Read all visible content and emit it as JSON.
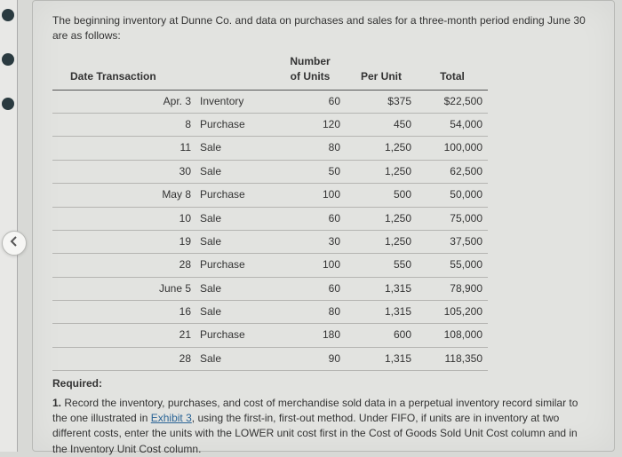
{
  "intro": "The beginning inventory at Dunne Co. and data on purchases and sales for a three-month period ending June 30 are as follows:",
  "headers": {
    "date": "Date Transaction",
    "units_l1": "Number",
    "units_l2": "of Units",
    "per": "Per Unit",
    "total": "Total"
  },
  "rows": [
    {
      "date": "Apr. 3",
      "txn": "Inventory",
      "units": "60",
      "per": "$375",
      "total": "$22,500"
    },
    {
      "date": "8",
      "txn": "Purchase",
      "units": "120",
      "per": "450",
      "total": "54,000"
    },
    {
      "date": "11",
      "txn": "Sale",
      "units": "80",
      "per": "1,250",
      "total": "100,000"
    },
    {
      "date": "30",
      "txn": "Sale",
      "units": "50",
      "per": "1,250",
      "total": "62,500"
    },
    {
      "date": "May 8",
      "txn": "Purchase",
      "units": "100",
      "per": "500",
      "total": "50,000"
    },
    {
      "date": "10",
      "txn": "Sale",
      "units": "60",
      "per": "1,250",
      "total": "75,000"
    },
    {
      "date": "19",
      "txn": "Sale",
      "units": "30",
      "per": "1,250",
      "total": "37,500"
    },
    {
      "date": "28",
      "txn": "Purchase",
      "units": "100",
      "per": "550",
      "total": "55,000"
    },
    {
      "date": "June 5",
      "txn": "Sale",
      "units": "60",
      "per": "1,315",
      "total": "78,900"
    },
    {
      "date": "16",
      "txn": "Sale",
      "units": "80",
      "per": "1,315",
      "total": "105,200"
    },
    {
      "date": "21",
      "txn": "Purchase",
      "units": "180",
      "per": "600",
      "total": "108,000"
    },
    {
      "date": "28",
      "txn": "Sale",
      "units": "90",
      "per": "1,315",
      "total": "118,350"
    }
  ],
  "required_label": "Required:",
  "required_num": "1.",
  "required_pre": " Record the inventory, purchases, and cost of merchandise sold data in a perpetual inventory record similar to the one illustrated in ",
  "exhibit_link": "Exhibit 3",
  "required_post": ", using the first-in, first-out method. Under FIFO, if units are in inventory at two different costs, enter the units with the LOWER unit cost first in the Cost of Goods Sold Unit Cost column and in the Inventory Unit Cost column."
}
